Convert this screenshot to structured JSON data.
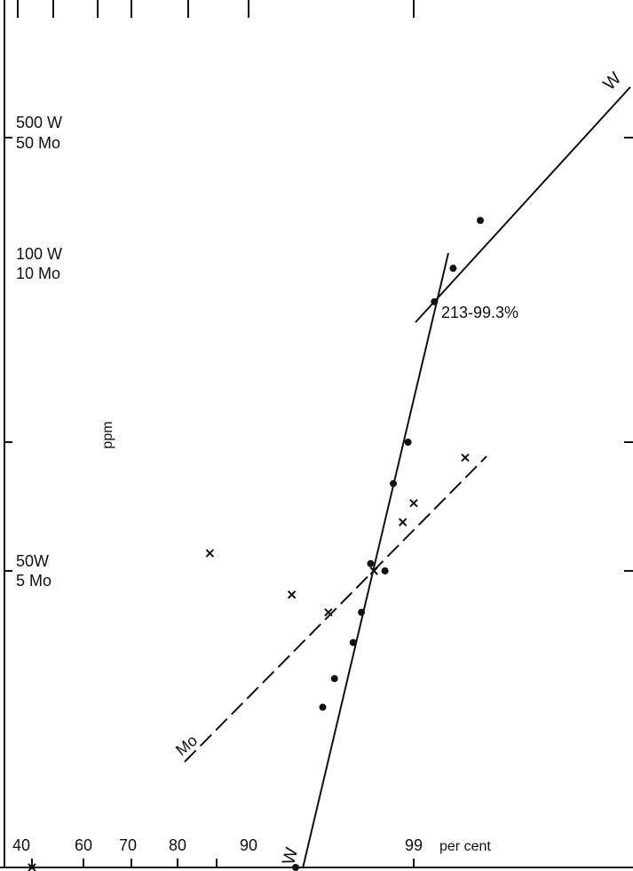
{
  "chart_data": {
    "type": "scatter",
    "x_axis": {
      "scale": "probability",
      "tick_labels": [
        "40",
        "60",
        "70",
        "80",
        "90",
        "99"
      ],
      "unit_label": "per cent"
    },
    "y_axis": {
      "scale": "log",
      "label": "ppm",
      "tick_labels": [
        {
          "W": "500 W",
          "Mo": "50 Mo"
        },
        {
          "W": "100 W",
          "Mo": "10 Mo"
        },
        {
          "W": "50W",
          "Mo": "5 Mo"
        }
      ]
    },
    "series": [
      {
        "name": "W",
        "marker": "dot",
        "line": "solid",
        "points": [
          [
            96.0,
            24
          ],
          [
            96.6,
            28
          ],
          [
            97.4,
            34
          ],
          [
            97.7,
            40
          ],
          [
            98.0,
            52
          ],
          [
            98.4,
            50
          ],
          [
            98.6,
            80
          ],
          [
            98.9,
            100
          ],
          [
            99.3,
            213
          ],
          [
            99.5,
            255
          ],
          [
            99.7,
            330
          ]
        ]
      },
      {
        "name": "Mo",
        "marker": "cross",
        "line": "dashed",
        "points": [
          [
            85,
            5.5
          ],
          [
            94,
            4.4
          ],
          [
            96.3,
            4.0
          ],
          [
            98.1,
            5.0
          ],
          [
            98.8,
            6.5
          ],
          [
            99.0,
            7.2
          ],
          [
            99.6,
            9.2
          ]
        ]
      }
    ],
    "annotations": [
      "213-99.3%"
    ],
    "line_labels": [
      "W",
      "W",
      "Mo"
    ]
  }
}
